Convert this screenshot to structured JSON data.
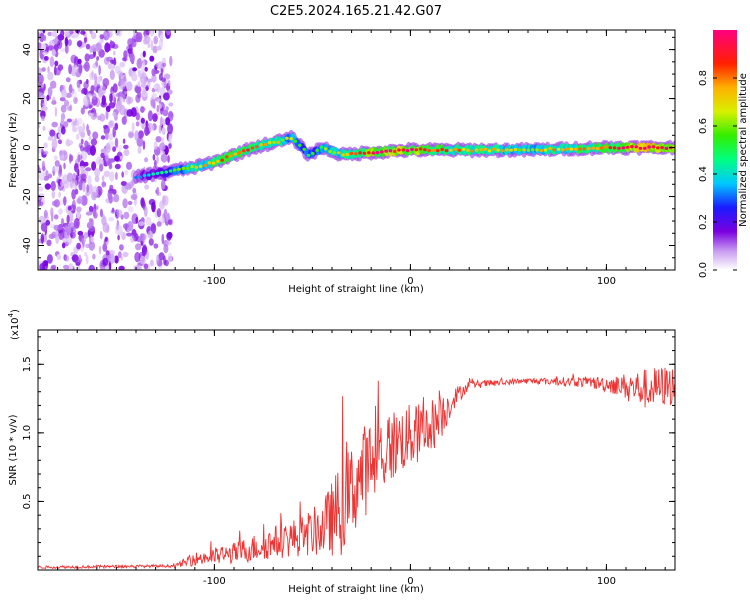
{
  "page": {
    "title": "C2E5.2024.165.21.42.G07"
  },
  "chart_data": [
    {
      "type": "heatmap",
      "title": "C2E5.2024.165.21.42.G07",
      "xlabel": "Height of straight line (km)",
      "ylabel": "Frequency (Hz)",
      "xlim": [
        -190,
        135
      ],
      "ylim": [
        -50,
        48
      ],
      "x_ticks": [
        -100,
        0,
        100
      ],
      "y_ticks": [
        -40,
        -20,
        0,
        20,
        40
      ],
      "colorbar": {
        "label": "Normalized spectral amplitude",
        "range": [
          0.0,
          1.0
        ],
        "ticks": [
          0.0,
          0.2,
          0.4,
          0.6,
          0.8
        ],
        "tick_labels": [
          "0.0",
          "0.2",
          "0.4",
          "0.6",
          "0.8"
        ],
        "colormap": "rainbow (white-violet-blue-cyan-green-yellow-red-magenta)"
      },
      "noise_region": {
        "x_range": [
          -190,
          -125
        ],
        "amplitude": 0.1
      },
      "ridge": [
        {
          "x": -140,
          "y": -12,
          "amplitude": 0.15
        },
        {
          "x": -125,
          "y": -10,
          "amplitude": 0.3
        },
        {
          "x": -110,
          "y": -8,
          "amplitude": 0.55
        },
        {
          "x": -100,
          "y": -6,
          "amplitude": 0.6
        },
        {
          "x": -90,
          "y": -3,
          "amplitude": 0.65
        },
        {
          "x": -80,
          "y": 0,
          "amplitude": 0.6
        },
        {
          "x": -70,
          "y": 2,
          "amplitude": 0.55
        },
        {
          "x": -60,
          "y": 4,
          "amplitude": 0.45
        },
        {
          "x": -52,
          "y": -3,
          "amplitude": 0.35
        },
        {
          "x": -45,
          "y": 0,
          "amplitude": 0.4
        },
        {
          "x": -35,
          "y": -3,
          "amplitude": 0.55
        },
        {
          "x": -20,
          "y": -2,
          "amplitude": 0.75
        },
        {
          "x": 0,
          "y": -1,
          "amplitude": 0.8
        },
        {
          "x": 20,
          "y": -1,
          "amplitude": 0.6
        },
        {
          "x": 60,
          "y": -1,
          "amplitude": 0.5
        },
        {
          "x": 100,
          "y": 0,
          "amplitude": 0.65
        },
        {
          "x": 120,
          "y": 0,
          "amplitude": 0.9
        },
        {
          "x": 135,
          "y": 0,
          "amplitude": 0.7
        }
      ]
    },
    {
      "type": "line",
      "xlabel": "Height of straight line (km)",
      "ylabel": "SNR (10 * v/v)",
      "y_scale_label": "(x10",
      "y_scale_exponent": "4",
      "y_scale_suffix": ")",
      "xlim": [
        -190,
        135
      ],
      "ylim": [
        0,
        1.75
      ],
      "x_ticks": [
        -100,
        0,
        100
      ],
      "y_ticks": [
        0.5,
        1.0,
        1.5
      ],
      "y_tick_labels": [
        "0.5",
        "1.0",
        "1.5"
      ],
      "series": [
        {
          "color": "#ee3333",
          "envelope": [
            {
              "x": -190,
              "y": 0.02,
              "noise": 0.01
            },
            {
              "x": -120,
              "y": 0.03,
              "noise": 0.01
            },
            {
              "x": -110,
              "y": 0.08,
              "noise": 0.05
            },
            {
              "x": -90,
              "y": 0.12,
              "noise": 0.08
            },
            {
              "x": -70,
              "y": 0.2,
              "noise": 0.12
            },
            {
              "x": -55,
              "y": 0.25,
              "noise": 0.15
            },
            {
              "x": -45,
              "y": 0.3,
              "noise": 0.2
            },
            {
              "x": -35,
              "y": 0.45,
              "noise": 0.35
            },
            {
              "x": -25,
              "y": 0.7,
              "noise": 0.35
            },
            {
              "x": -15,
              "y": 0.85,
              "noise": 0.3
            },
            {
              "x": -5,
              "y": 0.95,
              "noise": 0.25
            },
            {
              "x": 5,
              "y": 1.0,
              "noise": 0.22
            },
            {
              "x": 15,
              "y": 1.1,
              "noise": 0.18
            },
            {
              "x": 22,
              "y": 1.25,
              "noise": 0.08
            },
            {
              "x": 30,
              "y": 1.35,
              "noise": 0.03
            },
            {
              "x": 60,
              "y": 1.38,
              "noise": 0.02
            },
            {
              "x": 90,
              "y": 1.37,
              "noise": 0.04
            },
            {
              "x": 105,
              "y": 1.35,
              "noise": 0.07
            },
            {
              "x": 120,
              "y": 1.32,
              "noise": 0.15
            },
            {
              "x": 135,
              "y": 1.35,
              "noise": 0.15
            }
          ]
        }
      ]
    }
  ]
}
